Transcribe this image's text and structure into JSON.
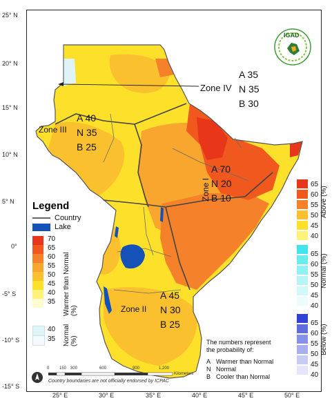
{
  "map": {
    "lat_ticks": [
      "25° N",
      "20° N",
      "15° N",
      "10° N",
      "5° N",
      "0°",
      "-5° S",
      "-10° S",
      "-15° S"
    ],
    "lon_ticks": [
      "25° E",
      "30° E",
      "35° E",
      "40° E",
      "45° E",
      "50° E"
    ],
    "scale_bar": {
      "ticks": [
        "0",
        "150",
        "300",
        "600",
        "900",
        "1,200"
      ],
      "unit": "Kilometers"
    },
    "disclaimer": "Country boundaries are not officially endorsed by ICPAC"
  },
  "logo": {
    "text": "IGAD",
    "icon": "igad-logo-icon"
  },
  "zones": [
    {
      "name": "Zone IV",
      "lines": [
        "A 35",
        "N 35",
        "B 30"
      ]
    },
    {
      "name": "Zone III",
      "lines": [
        "A 40",
        "N 35",
        "B 25"
      ]
    },
    {
      "name": "Zone I",
      "lines": [
        "A 70",
        "N 20",
        "B 10"
      ]
    },
    {
      "name": "Zone II",
      "lines": [
        "A 45",
        "N 30",
        "B 25"
      ]
    }
  ],
  "legend": {
    "title": "Legend",
    "country": "Country",
    "lake": "Lake",
    "warmer_title": "Warmer than Normal (%)",
    "warmer_values": [
      "70",
      "65",
      "60",
      "55",
      "50",
      "45",
      "40",
      "35"
    ],
    "normal_title": "Normal (%)",
    "normal_values": [
      "40",
      "35"
    ]
  },
  "right_legend": {
    "above": {
      "title": "Above (%)",
      "values": [
        "65",
        "60",
        "55",
        "50",
        "45",
        "40"
      ]
    },
    "normal": {
      "title": "Normal (%)",
      "values": [
        "65",
        "60",
        "55",
        "50",
        "45",
        "40"
      ]
    },
    "below": {
      "title": "Below (%)",
      "values": [
        "65",
        "60",
        "55",
        "50",
        "45",
        "40"
      ]
    }
  },
  "note": {
    "intro_1": "The numbers represent",
    "intro_2": "the probability of:",
    "items": [
      {
        "key": "A",
        "label": "Warmer than Normal"
      },
      {
        "key": "N",
        "label": "Normal"
      },
      {
        "key": "B",
        "label": "Cooler than Normal"
      }
    ]
  },
  "colors": {
    "c70": "#e8361b",
    "c65": "#f0581e",
    "c60": "#f5822a",
    "c55": "#f8a62e",
    "c50": "#fbc02d",
    "c45": "#fde02a",
    "c40": "#fff27a",
    "c35": "#fffbd0",
    "normal40": "#dff4f7",
    "normal35": "#f3fbfc",
    "lake": "#1452b8",
    "cyan": [
      "#3fe5ea",
      "#6aebee",
      "#93f0f2",
      "#b6f4f5",
      "#d3f8f9",
      "#ecfcfc"
    ],
    "blue": [
      "#3342d6",
      "#5e6ce0",
      "#8791e8",
      "#a9afee",
      "#c8ccf4",
      "#e3e5fa"
    ]
  }
}
